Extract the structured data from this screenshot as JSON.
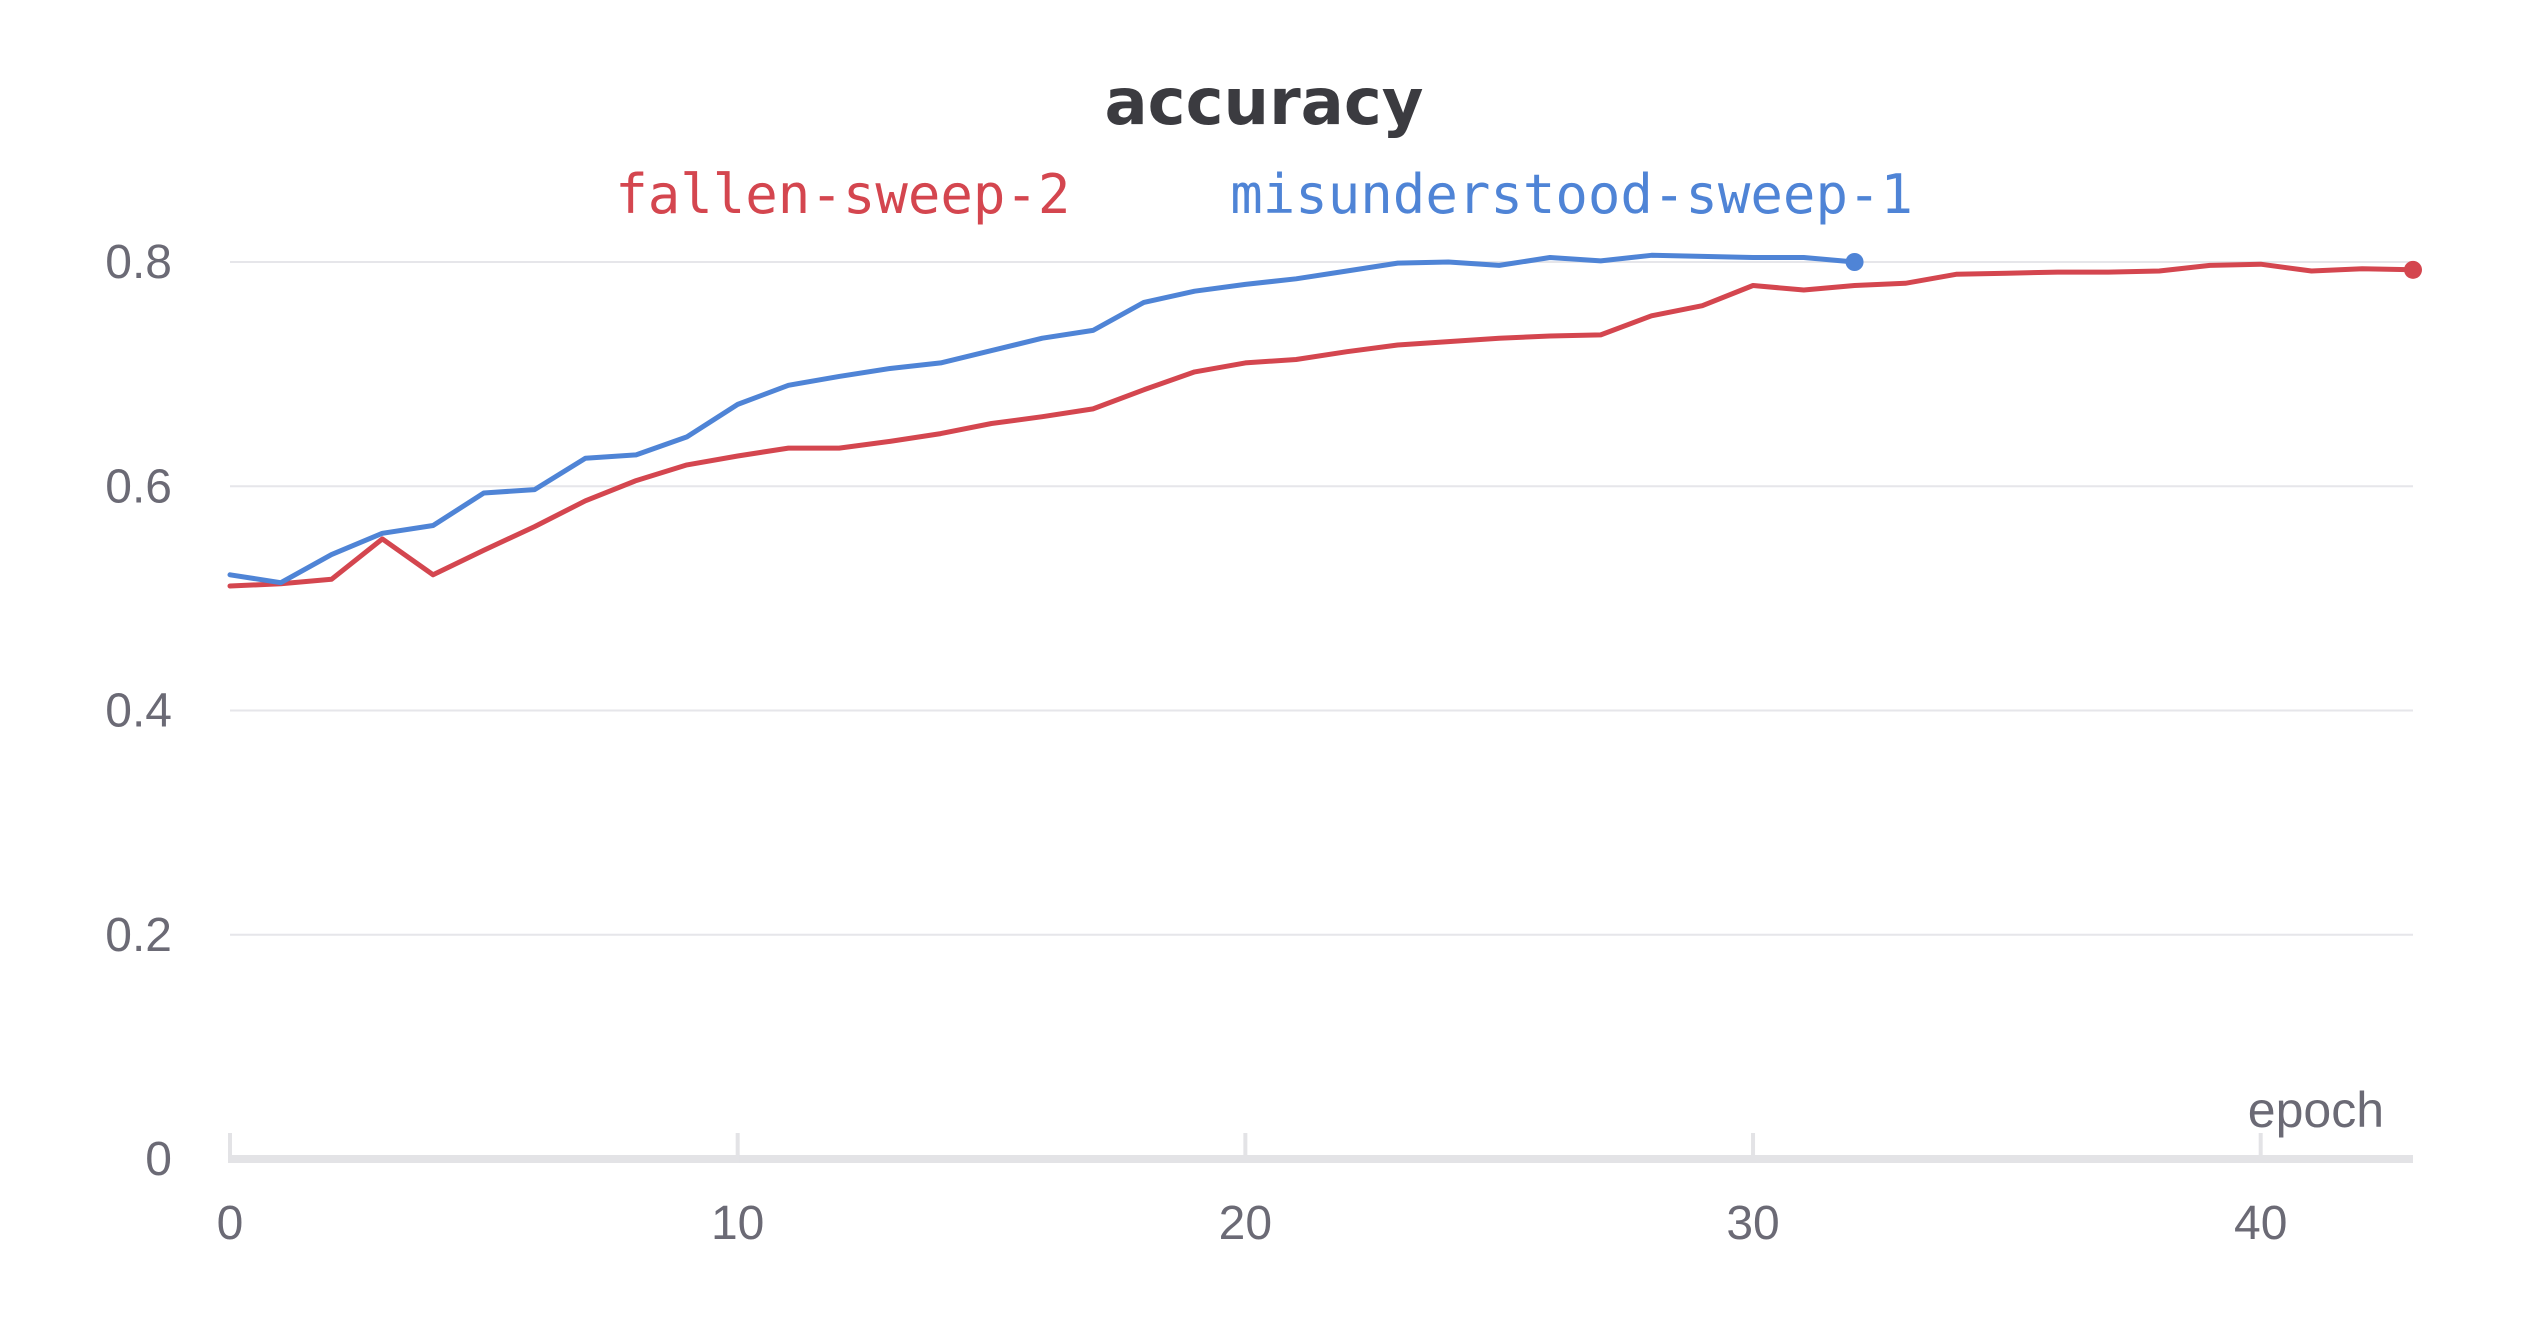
{
  "chart_data": {
    "type": "line",
    "title": "accuracy",
    "xlabel": "epoch",
    "ylabel": "",
    "xlim": [
      0,
      43
    ],
    "ylim": [
      0,
      0.8
    ],
    "x_ticks": [
      0,
      10,
      20,
      30,
      40
    ],
    "y_ticks": [
      0,
      0.2,
      0.4,
      0.6,
      0.8
    ],
    "x_tick_labels": [
      "0",
      "10",
      "20",
      "30",
      "40"
    ],
    "y_tick_labels": [
      "0",
      "0.2",
      "0.4",
      "0.6",
      "0.8"
    ],
    "grid": true,
    "legend_position": "top",
    "series": [
      {
        "name": "fallen-sweep-2",
        "color": "#d4464f",
        "x": [
          0,
          1,
          2,
          3,
          4,
          5,
          6,
          7,
          8,
          9,
          10,
          11,
          12,
          13,
          14,
          15,
          16,
          17,
          18,
          19,
          20,
          21,
          22,
          23,
          24,
          25,
          26,
          27,
          28,
          29,
          30,
          31,
          32,
          33,
          34,
          35,
          36,
          37,
          38,
          39,
          40,
          41,
          42,
          43
        ],
        "values": [
          0.511,
          0.513,
          0.517,
          0.553,
          0.521,
          0.543,
          0.564,
          0.587,
          0.605,
          0.619,
          0.627,
          0.634,
          0.634,
          0.64,
          0.647,
          0.656,
          0.662,
          0.669,
          0.686,
          0.702,
          0.71,
          0.713,
          0.72,
          0.726,
          0.729,
          0.732,
          0.734,
          0.735,
          0.752,
          0.761,
          0.779,
          0.775,
          0.779,
          0.781,
          0.789,
          0.79,
          0.791,
          0.791,
          0.792,
          0.797,
          0.798,
          0.792,
          0.794,
          0.793
        ]
      },
      {
        "name": "misunderstood-sweep-1",
        "color": "#4f84d6",
        "x": [
          0,
          1,
          2,
          3,
          4,
          5,
          6,
          7,
          8,
          9,
          10,
          11,
          12,
          13,
          14,
          15,
          16,
          17,
          18,
          19,
          20,
          21,
          22,
          23,
          24,
          25,
          26,
          27,
          28,
          29,
          30,
          31,
          32
        ],
        "values": [
          0.521,
          0.514,
          0.539,
          0.558,
          0.565,
          0.594,
          0.597,
          0.625,
          0.628,
          0.644,
          0.673,
          0.69,
          0.698,
          0.705,
          0.71,
          0.721,
          0.732,
          0.739,
          0.764,
          0.774,
          0.78,
          0.785,
          0.792,
          0.799,
          0.8,
          0.797,
          0.804,
          0.801,
          0.806,
          0.805,
          0.804,
          0.804,
          0.8
        ]
      }
    ]
  }
}
